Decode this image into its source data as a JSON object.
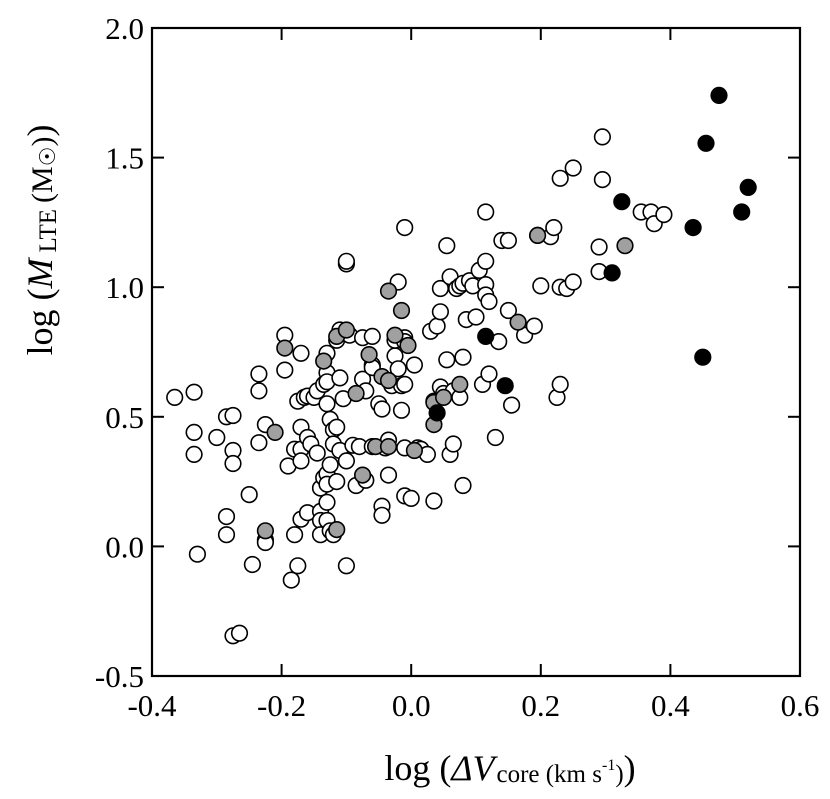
{
  "chart_data": {
    "type": "scatter",
    "title": "",
    "xlabel": {
      "prefix": "log (",
      "symbol": "ΔV",
      "subscript": "core (km s",
      "superscript": "-1",
      "subscript_end": ")",
      "suffix": ")"
    },
    "ylabel": {
      "prefix": "log (",
      "symbol": "M",
      "subscript": "LTE",
      "unit": "(M",
      "unit_symbol": "☉",
      "unit_end": ")",
      "suffix": ")"
    },
    "xlim": [
      -0.4,
      0.6
    ],
    "ylim": [
      -0.5,
      2.0
    ],
    "xticks": [
      -0.4,
      -0.2,
      0.0,
      0.2,
      0.4,
      0.6
    ],
    "yticks": [
      -0.5,
      0.0,
      0.5,
      1.0,
      1.5,
      2.0
    ],
    "xtick_labels": [
      "-0.4",
      "-0.2",
      "0.0",
      "0.2",
      "0.4",
      "0.6"
    ],
    "ytick_labels": [
      "-0.5",
      "0.0",
      "0.5",
      "1.0",
      "1.5",
      "2.0"
    ],
    "grid": false,
    "series": [
      {
        "name": "open",
        "marker": "open-circle",
        "color": "#ffffff",
        "points": [
          [
            -0.365,
            0.575
          ],
          [
            -0.335,
            0.595
          ],
          [
            -0.335,
            0.44
          ],
          [
            -0.335,
            0.355
          ],
          [
            -0.33,
            -0.03
          ],
          [
            -0.3,
            0.42
          ],
          [
            -0.285,
            0.5
          ],
          [
            -0.285,
            0.115
          ],
          [
            -0.285,
            0.045
          ],
          [
            -0.275,
            0.505
          ],
          [
            -0.275,
            0.37
          ],
          [
            -0.275,
            0.32
          ],
          [
            -0.275,
            -0.345
          ],
          [
            -0.265,
            -0.335
          ],
          [
            -0.25,
            0.2
          ],
          [
            -0.245,
            -0.07
          ],
          [
            -0.235,
            0.665
          ],
          [
            -0.235,
            0.6
          ],
          [
            -0.235,
            0.4
          ],
          [
            -0.225,
            0.47
          ],
          [
            -0.225,
            0.025
          ],
          [
            -0.225,
            0.015
          ],
          [
            -0.195,
            0.815
          ],
          [
            -0.195,
            0.68
          ],
          [
            -0.19,
            0.31
          ],
          [
            -0.185,
            -0.13
          ],
          [
            -0.18,
            0.375
          ],
          [
            -0.18,
            0.045
          ],
          [
            -0.175,
            0.56
          ],
          [
            -0.175,
            -0.075
          ],
          [
            -0.17,
            0.745
          ],
          [
            -0.17,
            0.46
          ],
          [
            -0.17,
            0.375
          ],
          [
            -0.17,
            0.33
          ],
          [
            -0.17,
            0.105
          ],
          [
            -0.165,
            0.575
          ],
          [
            -0.16,
            0.58
          ],
          [
            -0.16,
            0.42
          ],
          [
            -0.16,
            0.13
          ],
          [
            -0.155,
            0.395
          ],
          [
            -0.15,
            0.575
          ],
          [
            -0.145,
            0.6
          ],
          [
            -0.145,
            0.36
          ],
          [
            -0.14,
            0.225
          ],
          [
            -0.14,
            0.135
          ],
          [
            -0.14,
            0.1
          ],
          [
            -0.14,
            0.045
          ],
          [
            -0.135,
            0.625
          ],
          [
            -0.135,
            0.265
          ],
          [
            -0.13,
            0.745
          ],
          [
            -0.13,
            0.67
          ],
          [
            -0.13,
            0.635
          ],
          [
            -0.13,
            0.55
          ],
          [
            -0.13,
            0.28
          ],
          [
            -0.13,
            0.24
          ],
          [
            -0.13,
            0.17
          ],
          [
            -0.13,
            0.1
          ],
          [
            -0.125,
            0.49
          ],
          [
            -0.125,
            0.315
          ],
          [
            -0.125,
            0.06
          ],
          [
            -0.12,
            0.45
          ],
          [
            -0.12,
            0.395
          ],
          [
            -0.12,
            0.045
          ],
          [
            -0.115,
            0.795
          ],
          [
            -0.115,
            0.46
          ],
          [
            -0.115,
            0.25
          ],
          [
            -0.11,
            0.835
          ],
          [
            -0.11,
            0.65
          ],
          [
            -0.11,
            0.37
          ],
          [
            -0.105,
            0.57
          ],
          [
            -0.1,
            1.09
          ],
          [
            -0.1,
            1.1
          ],
          [
            -0.1,
            0.33
          ],
          [
            -0.1,
            -0.075
          ],
          [
            -0.095,
            0.815
          ],
          [
            -0.09,
            0.39
          ],
          [
            -0.085,
            0.235
          ],
          [
            -0.08,
            0.385
          ],
          [
            -0.075,
            0.805
          ],
          [
            -0.075,
            0.645
          ],
          [
            -0.07,
            0.6
          ],
          [
            -0.07,
            0.255
          ],
          [
            -0.06,
            0.81
          ],
          [
            -0.06,
            0.7
          ],
          [
            -0.06,
            0.69
          ],
          [
            -0.06,
            0.385
          ],
          [
            -0.05,
            0.55
          ],
          [
            -0.045,
            0.53
          ],
          [
            -0.045,
            0.155
          ],
          [
            -0.045,
            0.12
          ],
          [
            -0.04,
            0.38
          ],
          [
            -0.035,
            0.275
          ],
          [
            -0.035,
            0.41
          ],
          [
            -0.03,
            0.62
          ],
          [
            -0.025,
            0.735
          ],
          [
            -0.025,
            0.795
          ],
          [
            -0.02,
            1.02
          ],
          [
            -0.02,
            0.685
          ],
          [
            -0.015,
            0.525
          ],
          [
            -0.015,
            0.62
          ],
          [
            -0.01,
            1.23
          ],
          [
            -0.01,
            0.805
          ],
          [
            -0.01,
            0.79
          ],
          [
            -0.01,
            0.625
          ],
          [
            -0.01,
            0.38
          ],
          [
            -0.01,
            0.195
          ],
          [
            0.0,
            0.185
          ],
          [
            0.005,
            0.7
          ],
          [
            0.01,
            0.38
          ],
          [
            0.015,
            0.375
          ],
          [
            0.025,
            0.355
          ],
          [
            0.03,
            0.83
          ],
          [
            0.035,
            0.175
          ],
          [
            0.035,
            0.56
          ],
          [
            0.04,
            0.85
          ],
          [
            0.045,
            0.995
          ],
          [
            0.045,
            0.905
          ],
          [
            0.045,
            0.615
          ],
          [
            0.05,
            0.59
          ],
          [
            0.055,
            1.16
          ],
          [
            0.055,
            0.72
          ],
          [
            0.06,
            1.04
          ],
          [
            0.06,
            0.355
          ],
          [
            0.065,
            0.6
          ],
          [
            0.065,
            0.395
          ],
          [
            0.07,
            0.995
          ],
          [
            0.075,
            1.005
          ],
          [
            0.075,
            0.575
          ],
          [
            0.08,
            1.015
          ],
          [
            0.08,
            0.73
          ],
          [
            0.08,
            0.235
          ],
          [
            0.085,
            0.875
          ],
          [
            0.09,
            1.025
          ],
          [
            0.095,
            1.005
          ],
          [
            0.1,
            0.885
          ],
          [
            0.105,
            1.065
          ],
          [
            0.11,
            0.625
          ],
          [
            0.115,
            1.01
          ],
          [
            0.115,
            1.1
          ],
          [
            0.115,
            1.29
          ],
          [
            0.115,
            0.97
          ],
          [
            0.12,
            0.945
          ],
          [
            0.12,
            0.665
          ],
          [
            0.13,
            0.42
          ],
          [
            0.135,
            0.79
          ],
          [
            0.14,
            1.18
          ],
          [
            0.15,
            0.91
          ],
          [
            0.15,
            1.18
          ],
          [
            0.155,
            0.545
          ],
          [
            0.175,
            0.815
          ],
          [
            0.19,
            0.85
          ],
          [
            0.195,
            1.2
          ],
          [
            0.2,
            1.005
          ],
          [
            0.215,
            1.195
          ],
          [
            0.22,
            1.23
          ],
          [
            0.225,
            0.575
          ],
          [
            0.23,
            1.42
          ],
          [
            0.23,
            1.0
          ],
          [
            0.23,
            0.625
          ],
          [
            0.24,
            0.995
          ],
          [
            0.25,
            1.02
          ],
          [
            0.25,
            1.46
          ],
          [
            0.29,
            1.06
          ],
          [
            0.29,
            1.155
          ],
          [
            0.295,
            1.58
          ],
          [
            0.295,
            1.415
          ],
          [
            0.355,
            1.29
          ],
          [
            0.37,
            1.29
          ],
          [
            0.375,
            1.245
          ],
          [
            0.39,
            1.28
          ]
        ]
      },
      {
        "name": "gray",
        "marker": "gray-circle",
        "color": "#a0a0a0",
        "points": [
          [
            -0.225,
            0.06
          ],
          [
            -0.21,
            0.44
          ],
          [
            -0.195,
            0.765
          ],
          [
            -0.135,
            0.715
          ],
          [
            -0.115,
            0.81
          ],
          [
            -0.115,
            0.065
          ],
          [
            -0.1,
            0.835
          ],
          [
            -0.085,
            0.59
          ],
          [
            -0.075,
            0.275
          ],
          [
            -0.065,
            0.74
          ],
          [
            -0.055,
            0.385
          ],
          [
            -0.045,
            0.655
          ],
          [
            -0.035,
            0.985
          ],
          [
            -0.035,
            0.64
          ],
          [
            -0.035,
            0.385
          ],
          [
            -0.025,
            0.815
          ],
          [
            -0.015,
            0.91
          ],
          [
            -0.005,
            0.775
          ],
          [
            0.005,
            0.37
          ],
          [
            0.035,
            0.555
          ],
          [
            0.035,
            0.47
          ],
          [
            0.05,
            0.575
          ],
          [
            0.075,
            0.625
          ],
          [
            0.165,
            0.865
          ],
          [
            0.195,
            1.2
          ],
          [
            0.33,
            1.16
          ]
        ]
      },
      {
        "name": "filled",
        "marker": "filled-circle",
        "color": "#000000",
        "points": [
          [
            0.04,
            0.515
          ],
          [
            0.115,
            0.81
          ],
          [
            0.145,
            0.62
          ],
          [
            0.31,
            1.055
          ],
          [
            0.325,
            1.33
          ],
          [
            0.435,
            1.23
          ],
          [
            0.45,
            0.73
          ],
          [
            0.455,
            1.555
          ],
          [
            0.475,
            1.74
          ],
          [
            0.51,
            1.29
          ],
          [
            0.52,
            1.385
          ]
        ]
      }
    ]
  }
}
